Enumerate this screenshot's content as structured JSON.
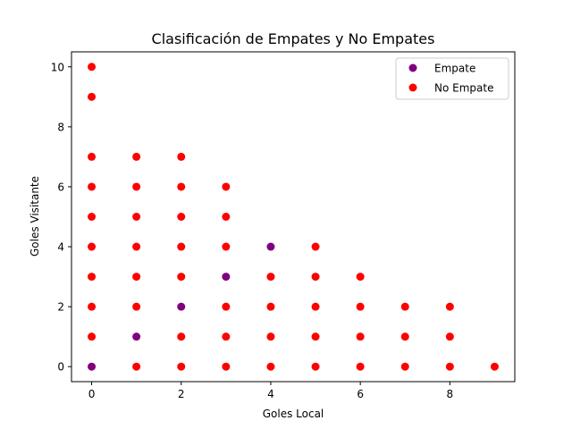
{
  "chart_data": {
    "type": "scatter",
    "title": "Clasificación de Empates y No Empates",
    "xlabel": "Goles Local",
    "ylabel": "Goles Visitante",
    "xlim": [
      -0.45,
      9.45
    ],
    "ylim": [
      -0.5,
      10.5
    ],
    "xticks": [
      0,
      2,
      4,
      6,
      8
    ],
    "yticks": [
      0,
      2,
      4,
      6,
      8,
      10
    ],
    "grid": false,
    "legend_position": "top-right",
    "series": [
      {
        "name": "Empate",
        "color": "#800080",
        "points": [
          [
            0,
            0
          ],
          [
            1,
            1
          ],
          [
            2,
            2
          ],
          [
            3,
            3
          ],
          [
            4,
            4
          ]
        ]
      },
      {
        "name": "No Empate",
        "color": "#ff0000",
        "points": [
          [
            0,
            1
          ],
          [
            0,
            2
          ],
          [
            0,
            3
          ],
          [
            0,
            4
          ],
          [
            0,
            5
          ],
          [
            0,
            6
          ],
          [
            0,
            7
          ],
          [
            0,
            9
          ],
          [
            0,
            10
          ],
          [
            1,
            0
          ],
          [
            1,
            2
          ],
          [
            1,
            3
          ],
          [
            1,
            4
          ],
          [
            1,
            5
          ],
          [
            1,
            6
          ],
          [
            1,
            7
          ],
          [
            2,
            0
          ],
          [
            2,
            1
          ],
          [
            2,
            3
          ],
          [
            2,
            4
          ],
          [
            2,
            5
          ],
          [
            2,
            6
          ],
          [
            2,
            7
          ],
          [
            3,
            0
          ],
          [
            3,
            1
          ],
          [
            3,
            2
          ],
          [
            3,
            4
          ],
          [
            3,
            5
          ],
          [
            3,
            6
          ],
          [
            4,
            0
          ],
          [
            4,
            1
          ],
          [
            4,
            2
          ],
          [
            4,
            3
          ],
          [
            5,
            0
          ],
          [
            5,
            1
          ],
          [
            5,
            2
          ],
          [
            5,
            3
          ],
          [
            5,
            4
          ],
          [
            6,
            0
          ],
          [
            6,
            1
          ],
          [
            6,
            2
          ],
          [
            6,
            3
          ],
          [
            7,
            0
          ],
          [
            7,
            1
          ],
          [
            7,
            2
          ],
          [
            8,
            0
          ],
          [
            8,
            1
          ],
          [
            8,
            2
          ],
          [
            9,
            0
          ]
        ]
      }
    ]
  }
}
